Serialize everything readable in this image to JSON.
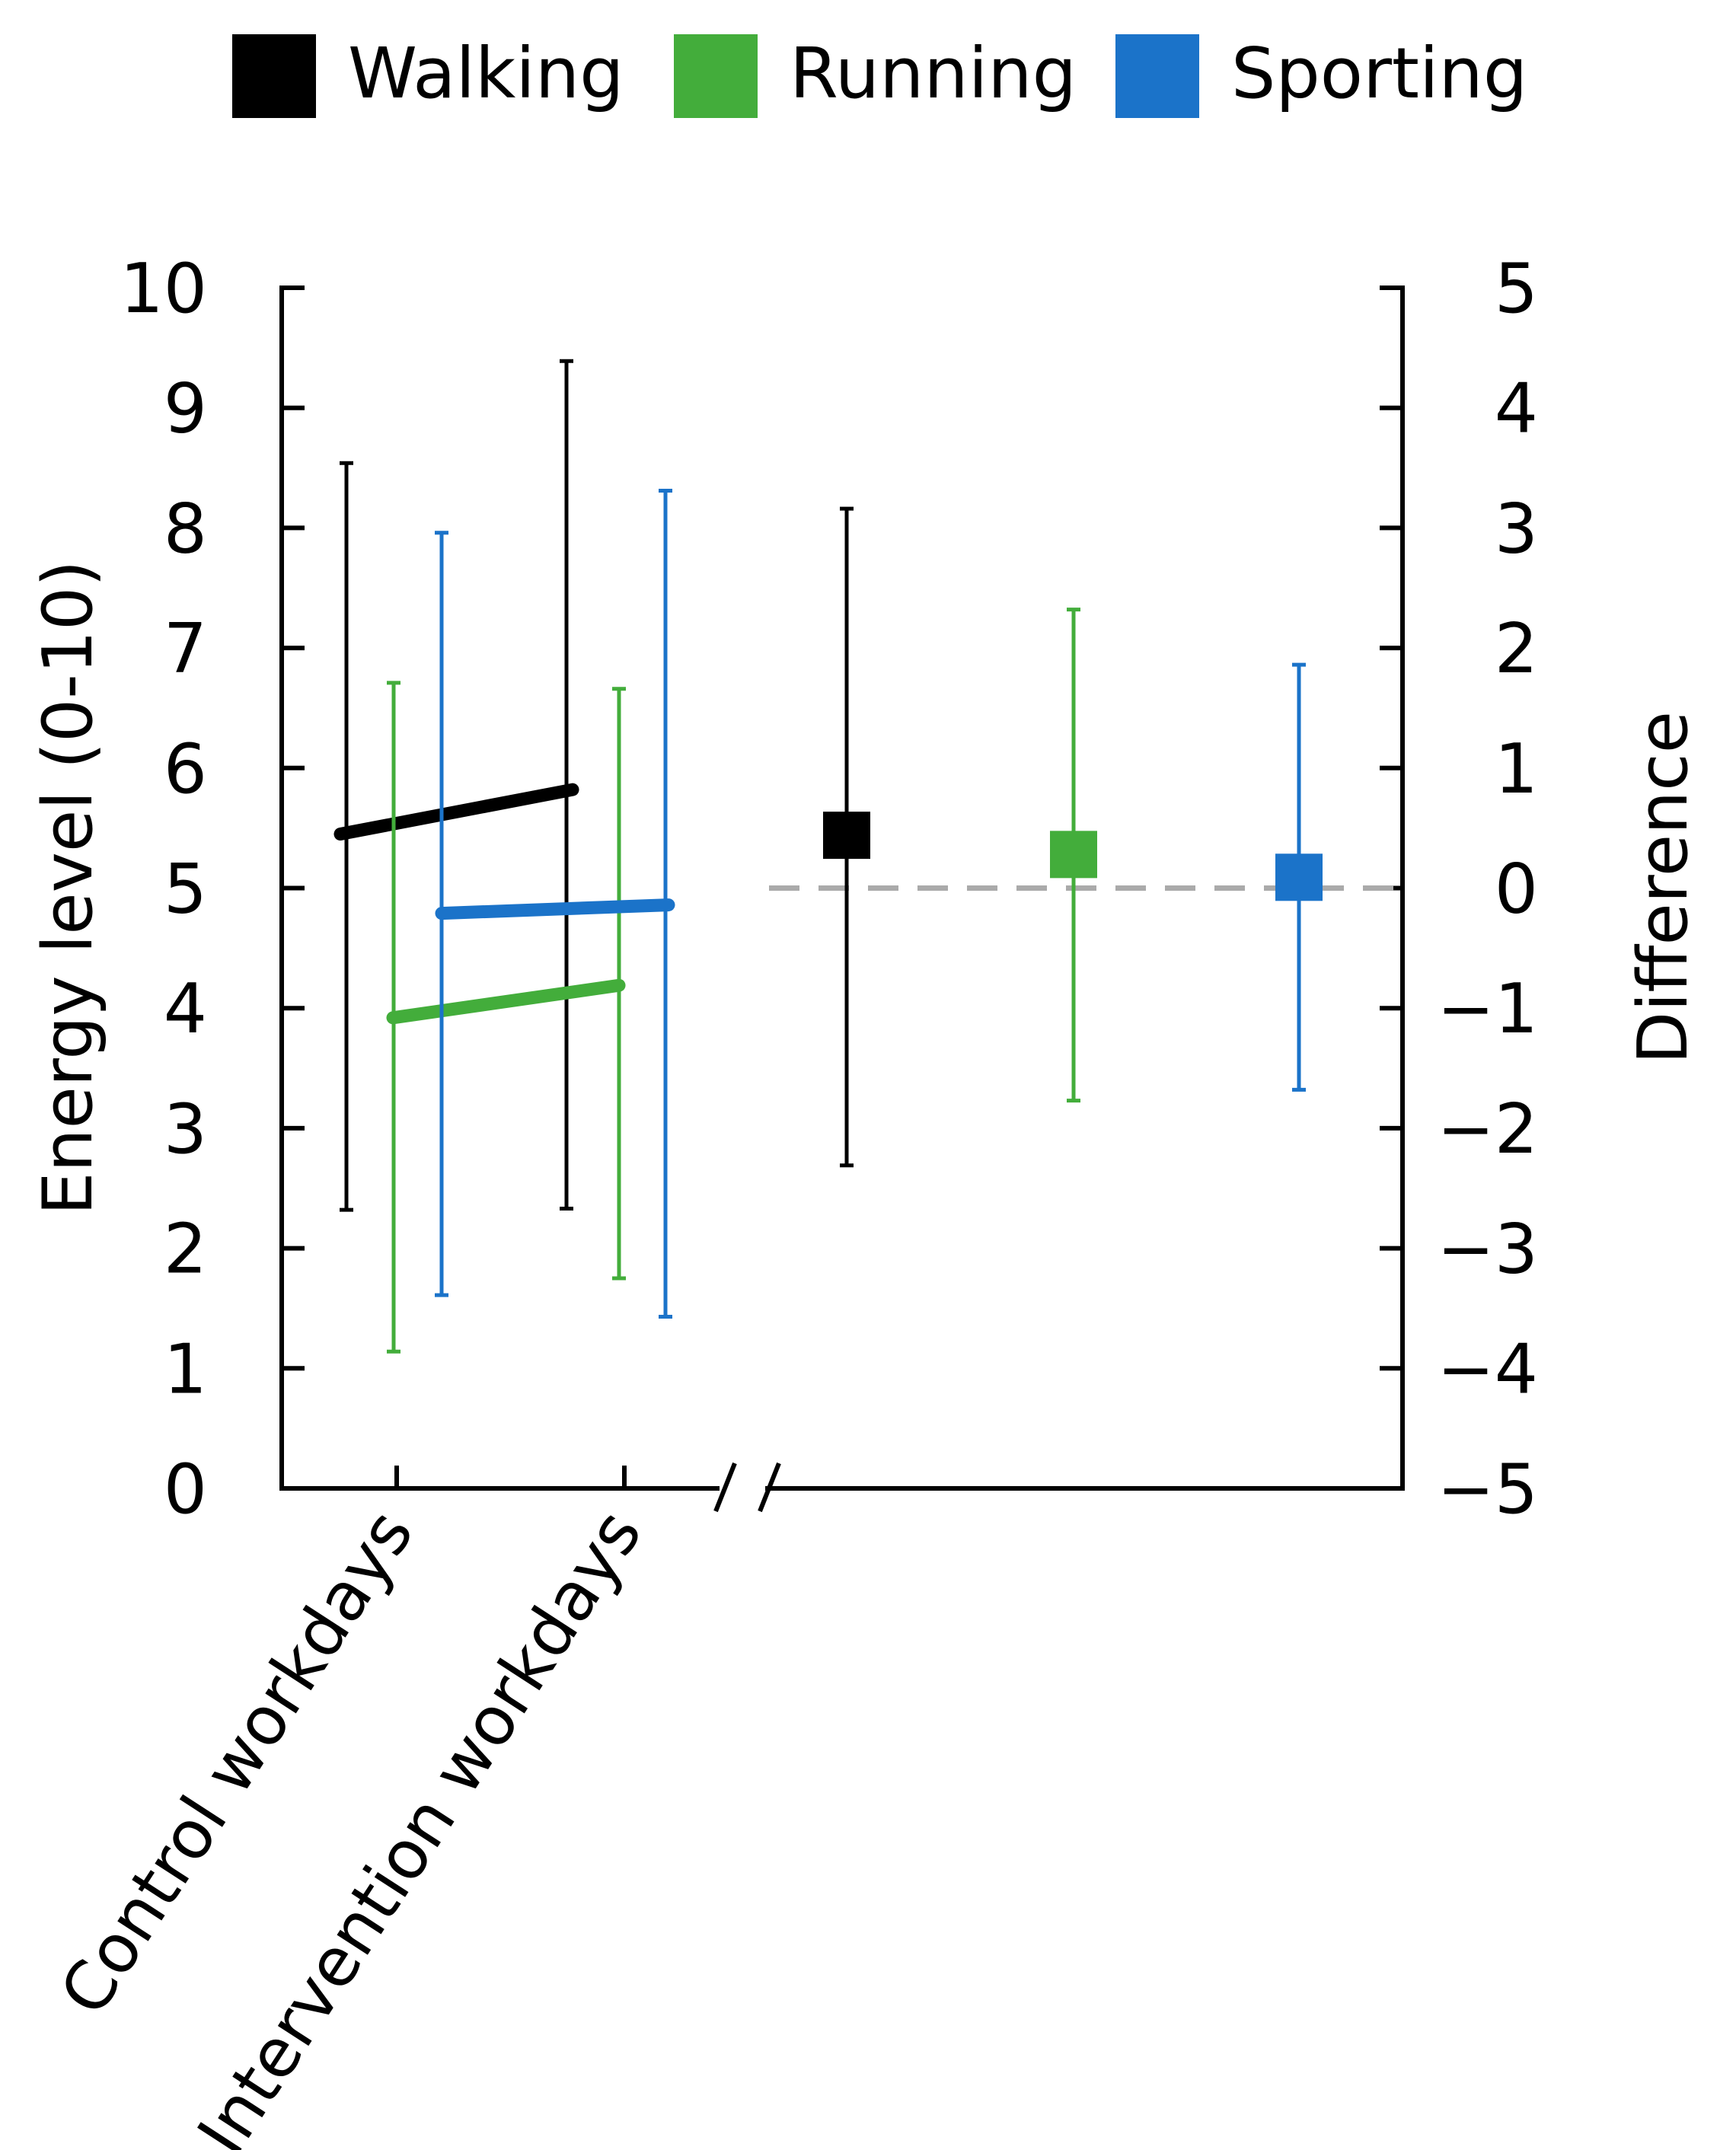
{
  "chart_data": {
    "type": "line",
    "legend": {
      "placement": "top",
      "entries": [
        {
          "name": "Walking",
          "color": "#000000"
        },
        {
          "name": "Running",
          "color": "#43ad3b"
        },
        {
          "name": "Sporting",
          "color": "#1b73c9"
        }
      ]
    },
    "left_axis": {
      "label": "Energy level (0-10)",
      "range": [
        0,
        10
      ],
      "ticks": [
        "0",
        "1",
        "2",
        "3",
        "4",
        "5",
        "6",
        "7",
        "8",
        "9",
        "10"
      ]
    },
    "right_axis": {
      "label": "Difference",
      "range": [
        -5,
        5
      ],
      "ticks": [
        "−5",
        "−4",
        "−3",
        "−2",
        "−1",
        "0",
        "1",
        "2",
        "3",
        "4",
        "5"
      ]
    },
    "categories": [
      "Control workdays",
      "Intervention workdays"
    ],
    "series": [
      {
        "name": "Walking",
        "means": [
          5.45,
          5.82
        ],
        "lower": [
          2.32,
          2.33
        ],
        "upper": [
          8.54,
          9.39
        ]
      },
      {
        "name": "Running",
        "means": [
          3.92,
          4.19
        ],
        "lower": [
          1.14,
          1.75
        ],
        "upper": [
          6.71,
          6.66
        ]
      },
      {
        "name": "Sporting",
        "means": [
          4.79,
          4.86
        ],
        "lower": [
          1.61,
          1.43
        ],
        "upper": [
          7.96,
          8.31
        ]
      }
    ],
    "differences": [
      {
        "name": "Walking",
        "value": 0.44,
        "lower": -2.31,
        "upper": 3.16
      },
      {
        "name": "Running",
        "value": 0.28,
        "lower": -1.77,
        "upper": 2.32
      },
      {
        "name": "Sporting",
        "value": 0.09,
        "lower": -1.68,
        "upper": 1.86
      }
    ],
    "reference_line": {
      "value": 0,
      "style": "dashed",
      "color": "#aaaaaa"
    }
  }
}
